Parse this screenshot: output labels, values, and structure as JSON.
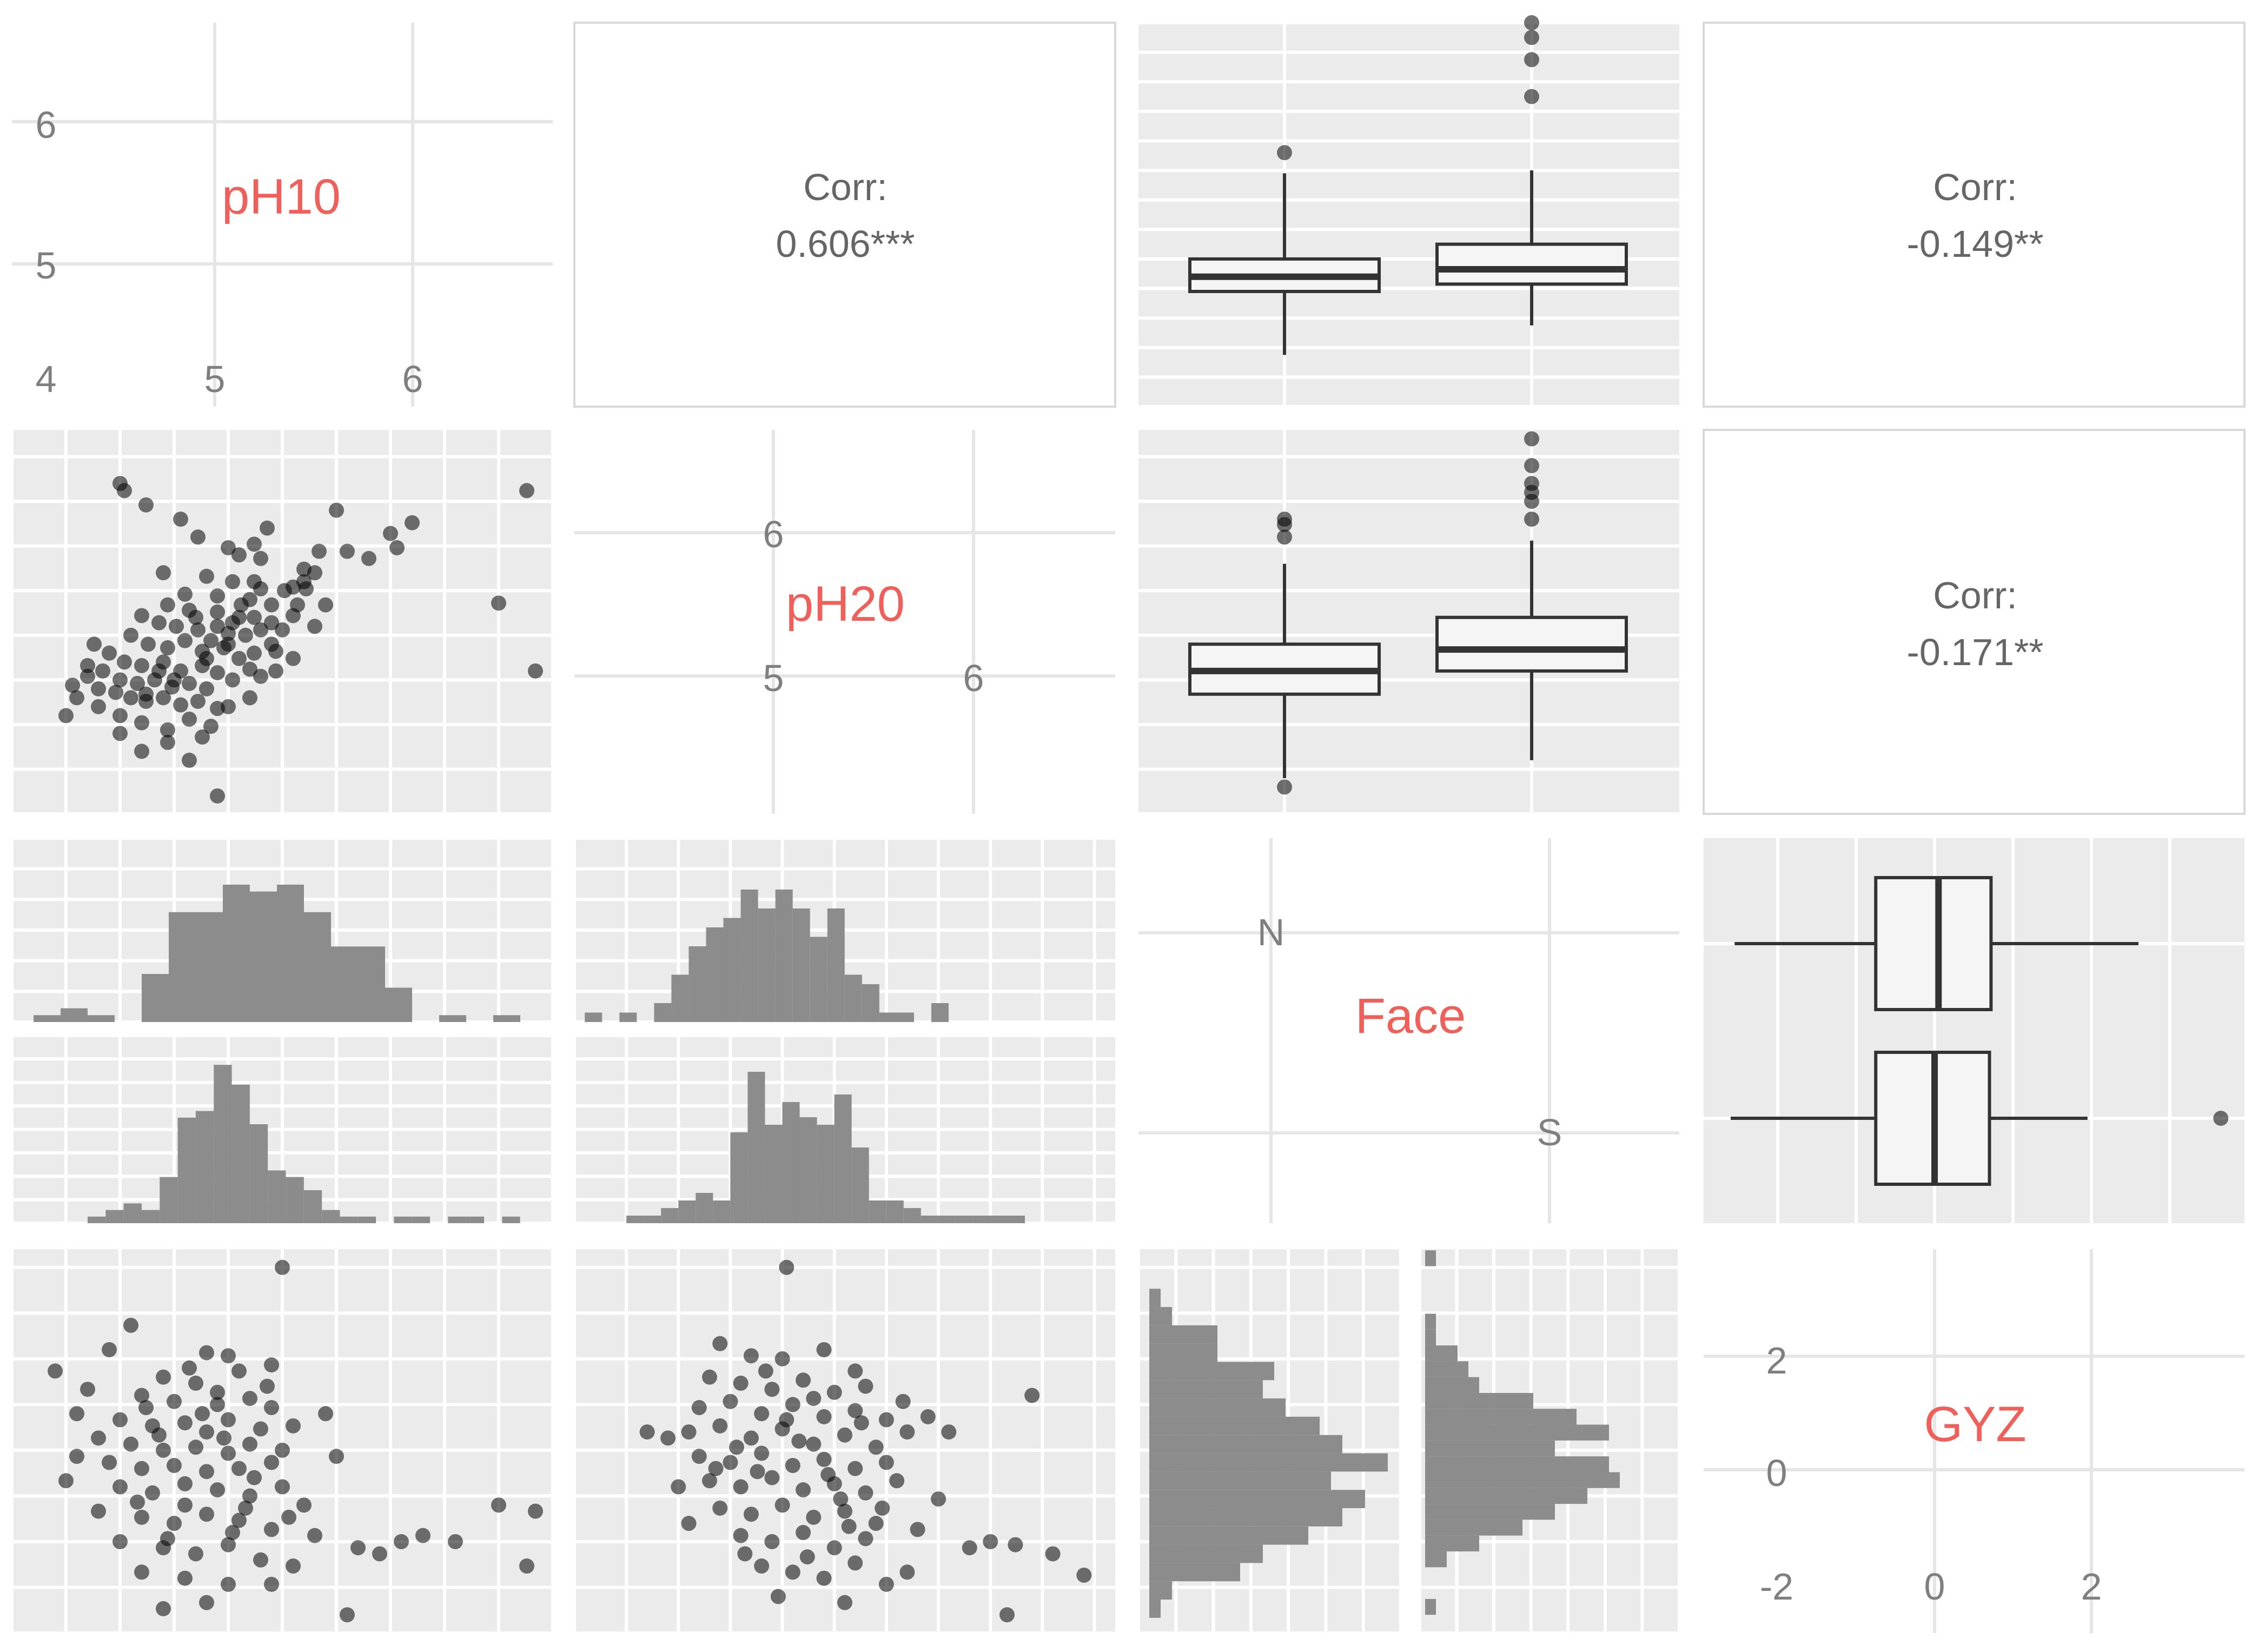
{
  "chart_data": {
    "type": "scatterplot-matrix",
    "variables": [
      "pH10",
      "pH20",
      "Face",
      "GYZ"
    ],
    "colors": {
      "panel_bg": "#ebebeb",
      "grid": "#ffffff",
      "label": "#f0605a",
      "text": "#7f7f7f",
      "point": "#000000",
      "bar": "#8c8c8c"
    },
    "correlations": [
      {
        "label": "Corr:",
        "value": "0.606***",
        "pair": [
          "pH10",
          "pH20"
        ]
      },
      {
        "label": "Corr:",
        "value": "-0.149**",
        "pair": [
          "pH10",
          "GYZ"
        ]
      },
      {
        "label": "Corr:",
        "value": "-0.171**",
        "pair": [
          "pH20",
          "GYZ"
        ]
      }
    ],
    "diagonal": {
      "pH10": {
        "label": "pH10",
        "xticks": [
          "4",
          "5",
          "6"
        ],
        "yticks": [
          "6",
          "5"
        ]
      },
      "pH20": {
        "label": "pH20",
        "xticks": [
          "5",
          "6"
        ],
        "yticks": [
          "6",
          "5"
        ]
      },
      "Face": {
        "label": "Face",
        "levels": [
          "N",
          "S"
        ]
      },
      "GYZ": {
        "label": "GYZ",
        "xticks": [
          "-2",
          "0",
          "2"
        ],
        "yticks": [
          "2",
          "0",
          "-2"
        ]
      }
    },
    "boxplots": {
      "pH10_by_Face": {
        "N": {
          "min": 4.35,
          "q1": 4.78,
          "median": 4.88,
          "q3": 5.0,
          "max": 5.58,
          "outliers": [
            5.72
          ]
        },
        "S": {
          "min": 4.55,
          "q1": 4.83,
          "median": 4.93,
          "q3": 5.1,
          "max": 5.6,
          "outliers": [
            6.1,
            6.35,
            6.5,
            6.6
          ]
        }
      },
      "pH20_by_Face": {
        "N": {
          "min": 4.45,
          "q1": 4.92,
          "median": 5.05,
          "q3": 5.2,
          "max": 5.65,
          "outliers": [
            4.4,
            5.8,
            5.87,
            5.9
          ]
        },
        "S": {
          "min": 4.55,
          "q1": 5.05,
          "median": 5.17,
          "q3": 5.35,
          "max": 5.78,
          "outliers": [
            5.9,
            6.0,
            6.05,
            6.1,
            6.2,
            6.35
          ]
        }
      },
      "GYZ_by_Face": {
        "N": {
          "min": -2.55,
          "q1": -0.75,
          "median": 0.05,
          "q3": 0.72,
          "max": 2.6,
          "outliers": []
        },
        "S": {
          "min": -2.6,
          "q1": -0.75,
          "median": 0.0,
          "q3": 0.7,
          "max": 1.95,
          "outliers": [
            3.65
          ]
        }
      }
    },
    "histograms": {
      "pH10_Face_N": [
        1,
        2,
        1,
        0,
        7,
        16,
        16,
        20,
        19,
        20,
        16,
        11,
        11,
        5,
        0,
        1,
        0,
        1
      ],
      "pH10_Face_S": [
        1,
        2,
        3,
        2,
        7,
        16,
        17,
        24,
        21,
        15,
        8,
        7,
        5,
        2,
        1,
        1,
        0,
        1,
        1,
        0,
        1,
        1,
        0,
        1
      ],
      "pH20_Face_N": [
        1,
        0,
        1,
        0,
        2,
        5,
        8,
        10,
        11,
        14,
        12,
        14,
        12,
        9,
        12,
        5,
        4,
        1,
        1,
        0,
        2
      ],
      "pH20_Face_S": [
        1,
        1,
        2,
        3,
        4,
        3,
        12,
        20,
        13,
        16,
        14,
        13,
        17,
        10,
        3,
        3,
        2,
        1,
        1,
        1,
        1,
        1,
        1
      ],
      "GYZ_Face_N": [
        1,
        2,
        8,
        10,
        14,
        17,
        19,
        16,
        21,
        17,
        15,
        12,
        10,
        11,
        6,
        6,
        2,
        1
      ],
      "GYZ_Face_S": [
        1,
        0,
        0,
        2,
        5,
        9,
        12,
        15,
        18,
        17,
        12,
        17,
        14,
        10,
        5,
        4,
        3,
        1,
        1,
        0,
        0,
        0,
        1
      ]
    },
    "scatter_pH10_pH20": [
      [
        4.52,
        6.06
      ],
      [
        4.62,
        5.98
      ],
      [
        4.78,
        5.9
      ],
      [
        4.86,
        5.8
      ],
      [
        5.0,
        5.74
      ],
      [
        5.05,
        5.7
      ],
      [
        5.12,
        5.76
      ],
      [
        5.15,
        5.68
      ],
      [
        4.7,
        5.6
      ],
      [
        4.9,
        5.58
      ],
      [
        5.02,
        5.55
      ],
      [
        5.12,
        5.55
      ],
      [
        5.15,
        5.51
      ],
      [
        4.8,
        5.48
      ],
      [
        4.95,
        5.47
      ],
      [
        5.1,
        5.45
      ],
      [
        5.3,
        5.52
      ],
      [
        5.36,
        5.51
      ],
      [
        5.35,
        5.55
      ],
      [
        5.2,
        5.42
      ],
      [
        4.72,
        5.42
      ],
      [
        4.82,
        5.39
      ],
      [
        4.95,
        5.38
      ],
      [
        5.05,
        5.35
      ],
      [
        5.12,
        5.35
      ],
      [
        4.6,
        5.36
      ],
      [
        4.68,
        5.32
      ],
      [
        4.76,
        5.3
      ],
      [
        4.86,
        5.28
      ],
      [
        4.95,
        5.3
      ],
      [
        5.0,
        5.26
      ],
      [
        5.08,
        5.25
      ],
      [
        5.2,
        5.32
      ],
      [
        5.25,
        5.28
      ],
      [
        4.55,
        5.25
      ],
      [
        4.63,
        5.2
      ],
      [
        4.72,
        5.18
      ],
      [
        4.8,
        5.22
      ],
      [
        4.88,
        5.16
      ],
      [
        4.98,
        5.18
      ],
      [
        5.05,
        5.12
      ],
      [
        5.12,
        5.15
      ],
      [
        5.22,
        5.16
      ],
      [
        4.38,
        5.2
      ],
      [
        4.45,
        5.15
      ],
      [
        4.52,
        5.1
      ],
      [
        4.6,
        5.08
      ],
      [
        4.7,
        5.1
      ],
      [
        4.78,
        5.05
      ],
      [
        4.88,
        5.08
      ],
      [
        4.95,
        5.04
      ],
      [
        5.02,
        5.0
      ],
      [
        5.1,
        5.06
      ],
      [
        5.15,
        5.02
      ],
      [
        4.42,
        5.05
      ],
      [
        4.5,
        5.0
      ],
      [
        4.58,
        4.98
      ],
      [
        4.66,
        5.0
      ],
      [
        4.74,
        4.96
      ],
      [
        4.82,
        4.98
      ],
      [
        4.9,
        4.95
      ],
      [
        4.48,
        4.93
      ],
      [
        4.55,
        4.9
      ],
      [
        4.62,
        4.88
      ],
      [
        4.7,
        4.9
      ],
      [
        4.78,
        4.86
      ],
      [
        4.86,
        4.88
      ],
      [
        4.95,
        4.84
      ],
      [
        4.4,
        4.85
      ],
      [
        4.5,
        4.8
      ],
      [
        4.6,
        4.76
      ],
      [
        4.72,
        4.72
      ],
      [
        4.82,
        4.78
      ],
      [
        4.92,
        4.74
      ],
      [
        4.6,
        4.6
      ],
      [
        4.72,
        4.65
      ],
      [
        4.5,
        4.7
      ],
      [
        4.88,
        4.68
      ],
      [
        4.82,
        4.55
      ],
      [
        4.95,
        4.35
      ],
      [
        4.25,
        4.8
      ],
      [
        4.3,
        4.9
      ],
      [
        4.35,
        5.02
      ],
      [
        4.4,
        4.95
      ],
      [
        4.35,
        5.08
      ],
      [
        4.28,
        4.97
      ],
      [
        5.4,
        5.6
      ],
      [
        5.42,
        5.72
      ],
      [
        5.3,
        5.36
      ],
      [
        5.1,
        4.9
      ],
      [
        5.0,
        4.85
      ],
      [
        5.22,
        5.05
      ],
      [
        5.3,
        5.12
      ],
      [
        5.4,
        5.3
      ],
      [
        5.45,
        5.42
      ],
      [
        5.2,
        5.2
      ],
      [
        4.9,
        5.12
      ],
      [
        4.68,
        5.05
      ],
      [
        5.32,
        5.42
      ],
      [
        5.26,
        5.5
      ],
      [
        5.55,
        5.72
      ],
      [
        5.65,
        5.68
      ],
      [
        5.75,
        5.82
      ],
      [
        5.85,
        5.88
      ],
      [
        5.78,
        5.74
      ],
      [
        6.25,
        5.43
      ],
      [
        6.38,
        6.06
      ],
      [
        6.42,
        5.05
      ],
      [
        5.5,
        5.95
      ],
      [
        5.35,
        5.62
      ],
      [
        4.5,
        6.1
      ],
      [
        5.18,
        5.85
      ],
      [
        5.0,
        5.2
      ],
      [
        5.06,
        5.42
      ],
      [
        4.85,
        5.35
      ],
      [
        5.15,
        5.28
      ],
      [
        4.75,
        5.0
      ],
      [
        4.62,
        4.92
      ],
      [
        4.92,
        5.22
      ],
      [
        5.02,
        5.32
      ]
    ],
    "scatter_pH10_GYZ": [
      [
        5.25,
        3.0
      ],
      [
        4.55,
        2.05
      ],
      [
        4.45,
        1.65
      ],
      [
        5.0,
        1.55
      ],
      [
        4.9,
        1.6
      ],
      [
        4.7,
        1.2
      ],
      [
        4.85,
        1.1
      ],
      [
        5.05,
        1.3
      ],
      [
        5.2,
        1.4
      ],
      [
        4.6,
        0.9
      ],
      [
        4.75,
        0.8
      ],
      [
        4.95,
        0.75
      ],
      [
        5.1,
        0.85
      ],
      [
        5.2,
        0.7
      ],
      [
        4.5,
        0.5
      ],
      [
        4.65,
        0.4
      ],
      [
        4.8,
        0.45
      ],
      [
        4.9,
        0.3
      ],
      [
        5.0,
        0.5
      ],
      [
        5.15,
        0.35
      ],
      [
        5.3,
        0.4
      ],
      [
        4.4,
        0.2
      ],
      [
        4.55,
        0.1
      ],
      [
        4.7,
        0.0
      ],
      [
        4.85,
        0.05
      ],
      [
        5.0,
        -0.05
      ],
      [
        5.1,
        0.1
      ],
      [
        5.25,
        0.0
      ],
      [
        4.45,
        -0.2
      ],
      [
        4.6,
        -0.3
      ],
      [
        4.75,
        -0.25
      ],
      [
        4.9,
        -0.35
      ],
      [
        5.05,
        -0.3
      ],
      [
        5.2,
        -0.2
      ],
      [
        4.5,
        -0.6
      ],
      [
        4.65,
        -0.7
      ],
      [
        4.8,
        -0.55
      ],
      [
        4.95,
        -0.65
      ],
      [
        5.1,
        -0.75
      ],
      [
        5.25,
        -0.6
      ],
      [
        4.4,
        -1.0
      ],
      [
        4.6,
        -1.1
      ],
      [
        4.75,
        -1.2
      ],
      [
        4.9,
        -1.05
      ],
      [
        5.05,
        -1.15
      ],
      [
        5.2,
        -1.3
      ],
      [
        4.5,
        -1.5
      ],
      [
        4.7,
        -1.6
      ],
      [
        4.85,
        -1.7
      ],
      [
        5.0,
        -1.55
      ],
      [
        5.15,
        -1.8
      ],
      [
        4.6,
        -2.0
      ],
      [
        4.8,
        -2.1
      ],
      [
        5.0,
        -2.2
      ],
      [
        4.9,
        -2.5
      ],
      [
        4.7,
        -2.6
      ],
      [
        5.3,
        -1.9
      ],
      [
        5.4,
        -1.4
      ],
      [
        5.5,
        -0.1
      ],
      [
        5.35,
        -0.9
      ],
      [
        4.3,
        0.6
      ],
      [
        4.25,
        -0.5
      ],
      [
        4.2,
        1.3
      ],
      [
        4.3,
        -0.1
      ],
      [
        4.35,
        1.0
      ],
      [
        5.45,
        0.6
      ],
      [
        5.6,
        -1.6
      ],
      [
        5.7,
        -1.7
      ],
      [
        5.8,
        -1.5
      ],
      [
        5.9,
        -1.4
      ],
      [
        6.05,
        -1.5
      ],
      [
        6.25,
        -0.9
      ],
      [
        6.38,
        -1.9
      ],
      [
        6.42,
        -1.0
      ],
      [
        5.55,
        -2.7
      ],
      [
        5.2,
        -2.2
      ],
      [
        4.95,
        0.95
      ],
      [
        4.8,
        -0.9
      ],
      [
        5.12,
        -0.45
      ],
      [
        4.68,
        0.25
      ],
      [
        4.58,
        -0.85
      ],
      [
        4.88,
        0.6
      ],
      [
        5.02,
        -1.35
      ],
      [
        5.18,
        1.05
      ],
      [
        4.72,
        -1.45
      ],
      [
        4.98,
        0.2
      ],
      [
        5.08,
        -0.95
      ],
      [
        4.62,
        0.7
      ],
      [
        5.28,
        -1.1
      ],
      [
        4.82,
        1.35
      ]
    ],
    "scatter_pH20_GYZ": [
      [
        5.02,
        3.0
      ],
      [
        4.7,
        1.75
      ],
      [
        4.85,
        1.55
      ],
      [
        5.0,
        1.5
      ],
      [
        5.2,
        1.65
      ],
      [
        5.35,
        1.3
      ],
      [
        4.65,
        1.2
      ],
      [
        4.8,
        1.1
      ],
      [
        4.95,
        1.0
      ],
      [
        5.1,
        1.15
      ],
      [
        5.25,
        0.95
      ],
      [
        5.4,
        1.05
      ],
      [
        4.6,
        0.7
      ],
      [
        4.75,
        0.8
      ],
      [
        4.9,
        0.6
      ],
      [
        5.05,
        0.75
      ],
      [
        5.2,
        0.55
      ],
      [
        5.35,
        0.65
      ],
      [
        5.5,
        0.5
      ],
      [
        4.55,
        0.3
      ],
      [
        4.7,
        0.4
      ],
      [
        4.85,
        0.2
      ],
      [
        5.0,
        0.35
      ],
      [
        5.15,
        0.1
      ],
      [
        5.3,
        0.25
      ],
      [
        5.45,
        0.05
      ],
      [
        5.6,
        0.3
      ],
      [
        4.6,
        -0.1
      ],
      [
        4.75,
        -0.2
      ],
      [
        4.9,
        -0.05
      ],
      [
        5.05,
        -0.25
      ],
      [
        5.2,
        -0.15
      ],
      [
        5.35,
        -0.3
      ],
      [
        5.5,
        -0.2
      ],
      [
        4.65,
        -0.5
      ],
      [
        4.8,
        -0.6
      ],
      [
        4.95,
        -0.45
      ],
      [
        5.1,
        -0.65
      ],
      [
        5.25,
        -0.55
      ],
      [
        5.4,
        -0.7
      ],
      [
        5.55,
        -0.5
      ],
      [
        4.7,
        -0.95
      ],
      [
        4.85,
        -1.05
      ],
      [
        5.0,
        -0.9
      ],
      [
        5.15,
        -1.1
      ],
      [
        5.3,
        -1.0
      ],
      [
        5.45,
        -1.2
      ],
      [
        4.8,
        -1.4
      ],
      [
        4.95,
        -1.5
      ],
      [
        5.1,
        -1.35
      ],
      [
        5.25,
        -1.6
      ],
      [
        5.4,
        -1.45
      ],
      [
        4.9,
        -1.9
      ],
      [
        5.05,
        -2.0
      ],
      [
        5.2,
        -2.1
      ],
      [
        5.35,
        -1.85
      ],
      [
        4.98,
        -2.4
      ],
      [
        5.3,
        -2.5
      ],
      [
        5.5,
        -2.2
      ],
      [
        4.45,
        0.2
      ],
      [
        4.5,
        -0.6
      ],
      [
        4.35,
        0.3
      ],
      [
        4.55,
        -1.2
      ],
      [
        5.7,
        0.55
      ],
      [
        5.8,
        0.3
      ],
      [
        5.75,
        -0.8
      ],
      [
        5.9,
        -1.6
      ],
      [
        6.0,
        -1.5
      ],
      [
        6.12,
        -1.55
      ],
      [
        6.08,
        -2.7
      ],
      [
        6.3,
        -1.7
      ],
      [
        6.2,
        0.9
      ],
      [
        6.45,
        -2.05
      ],
      [
        5.65,
        -1.3
      ],
      [
        5.6,
        -2.0
      ],
      [
        5.15,
        0.85
      ],
      [
        4.88,
        -0.35
      ],
      [
        5.28,
        -0.8
      ],
      [
        5.02,
        0.5
      ],
      [
        5.38,
        0.45
      ],
      [
        4.78,
        0.05
      ],
      [
        5.12,
        -1.75
      ],
      [
        5.48,
        -0.95
      ],
      [
        4.92,
        1.3
      ],
      [
        5.22,
        -0.4
      ],
      [
        5.58,
        0.8
      ],
      [
        4.68,
        -0.3
      ],
      [
        5.08,
        0.15
      ],
      [
        5.32,
        -1.25
      ],
      [
        4.82,
        -1.7
      ]
    ]
  }
}
